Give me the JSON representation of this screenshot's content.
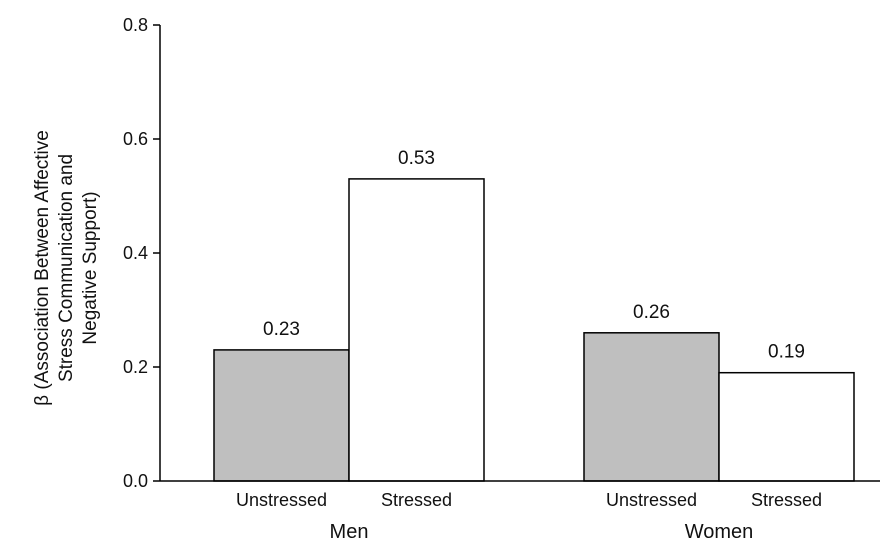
{
  "chart_data": {
    "type": "bar",
    "title": "",
    "ylabel": {
      "lines": [
        "β (Association Between Affective",
        "Stress Communication and",
        "Negative Support)"
      ]
    },
    "xlabel": "",
    "ylim": [
      0,
      0.8
    ],
    "yticks": [
      "0.0",
      "0.2",
      "0.4",
      "0.6",
      "0.8"
    ],
    "groups": [
      {
        "label": "Men",
        "bars": [
          {
            "condition": "Unstressed",
            "value": 0.23,
            "value_label": "0.23",
            "fill": "#bfbfbf"
          },
          {
            "condition": "Stressed",
            "value": 0.53,
            "value_label": "0.53",
            "fill": "#ffffff"
          }
        ]
      },
      {
        "label": "Women",
        "bars": [
          {
            "condition": "Unstressed",
            "value": 0.26,
            "value_label": "0.26",
            "fill": "#bfbfbf"
          },
          {
            "condition": "Stressed",
            "value": 0.19,
            "value_label": "0.19",
            "fill": "#ffffff"
          }
        ]
      }
    ],
    "grid": false,
    "colors": {
      "axis": "#000000",
      "bar_stroke": "#000000"
    }
  }
}
